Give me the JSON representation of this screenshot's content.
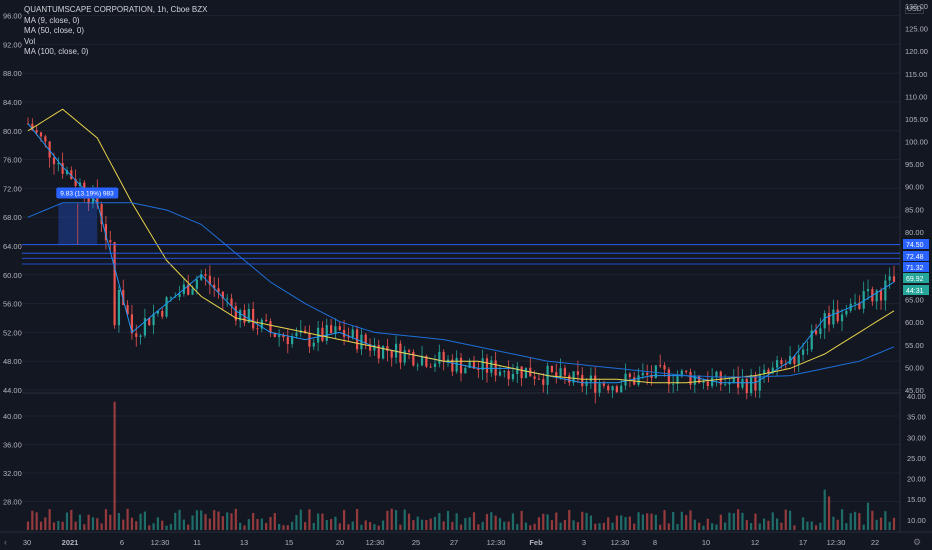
{
  "legend": {
    "title": "QUANTUMSCAPE CORPORATION, 1h, Cboe BZX",
    "ma9": "MA (9, close, 0)",
    "ma50": "MA (50, close, 0)",
    "vol": "Vol",
    "ma100": "MA (100, close, 0)"
  },
  "currency": "USD",
  "colors": {
    "background": "#131722",
    "up": "#26a69a",
    "down": "#ef5350",
    "ma9": "#2196f3",
    "ma50": "#e8d34a",
    "ma100": "#1e6fd9",
    "hline": "#2962ff",
    "grid": "#1e2230"
  },
  "chart_data": [
    {
      "type": "line",
      "title": "QUANTUMSCAPE CORPORATION, 1h, Cboe BZX",
      "left_axis_ticks": [
        "96.00",
        "92.00",
        "88.00",
        "84.00",
        "80.00",
        "76.00",
        "72.00",
        "68.00",
        "64.00",
        "60.00",
        "56.00",
        "52.00",
        "48.00",
        "44.00"
      ],
      "right_axis_ticks": [
        "130.00",
        "125.00",
        "120.00",
        "115.00",
        "110.00",
        "105.00",
        "100.00",
        "95.00",
        "90.00",
        "85.00",
        "80.00",
        "75.00",
        "70.00",
        "65.00",
        "60.00",
        "55.00",
        "50.00",
        "45.00"
      ],
      "x_tick_labels": [
        "30",
        "2021",
        "6",
        "12:30",
        "11",
        "13",
        "15",
        "20",
        "12:30",
        "25",
        "27",
        "12:30",
        "Feb",
        "3",
        "12:30",
        "8",
        "10",
        "12",
        "17",
        "12:30",
        "22"
      ],
      "series": [
        {
          "name": "MA (9, close, 0)",
          "x": [
            0,
            8,
            16,
            24,
            32,
            40,
            48,
            56,
            64,
            72,
            80,
            88,
            96,
            104,
            112,
            120,
            128,
            136,
            144,
            152,
            160,
            168,
            176,
            184,
            192,
            200
          ],
          "values": [
            81,
            75,
            70,
            52,
            56,
            60,
            55,
            52,
            51,
            52,
            50,
            49,
            48,
            47,
            47,
            46,
            45,
            45,
            46,
            46,
            45,
            45,
            48,
            54,
            56,
            59
          ]
        },
        {
          "name": "MA (50, close, 0)",
          "x": [
            0,
            8,
            16,
            24,
            32,
            40,
            48,
            56,
            64,
            72,
            80,
            88,
            96,
            104,
            112,
            120,
            128,
            136,
            144,
            152,
            160,
            168,
            176,
            184,
            192,
            200
          ],
          "values": [
            80,
            83,
            79,
            70,
            62,
            57,
            54,
            53,
            52,
            51,
            50,
            49,
            48,
            48,
            47,
            46,
            45.5,
            45.5,
            45,
            45,
            45.5,
            46,
            47,
            49,
            52,
            55
          ]
        },
        {
          "name": "MA (100, close, 0)",
          "x": [
            0,
            8,
            16,
            24,
            32,
            40,
            48,
            56,
            64,
            72,
            80,
            88,
            96,
            104,
            112,
            120,
            128,
            136,
            144,
            152,
            160,
            168,
            176,
            184,
            192,
            200
          ],
          "values": [
            68,
            70,
            70,
            70,
            69,
            67,
            63,
            59,
            56,
            53.5,
            52,
            51.5,
            51,
            50,
            49,
            48,
            47.5,
            47,
            46.5,
            46,
            45.8,
            45.8,
            46,
            47,
            48,
            50
          ]
        }
      ],
      "hlines": [
        64.2,
        63.0,
        62.3,
        61.5
      ],
      "measure_label": "9.83 (13.19%) 983",
      "price_labels": [
        "74.50",
        "72.48",
        "71.32",
        "69.92",
        "44:31"
      ]
    },
    {
      "type": "bar",
      "title": "Vol",
      "left_axis_ticks": [
        "40.00",
        "36.00",
        "32.00",
        "28.00"
      ],
      "right_axis_ticks": [
        "40.00",
        "35.00",
        "30.00",
        "25.00",
        "20.00",
        "15.00",
        "10.00"
      ],
      "spikes": [
        {
          "x": 20,
          "value": 42
        },
        {
          "x": 178,
          "value": 22
        }
      ]
    }
  ]
}
